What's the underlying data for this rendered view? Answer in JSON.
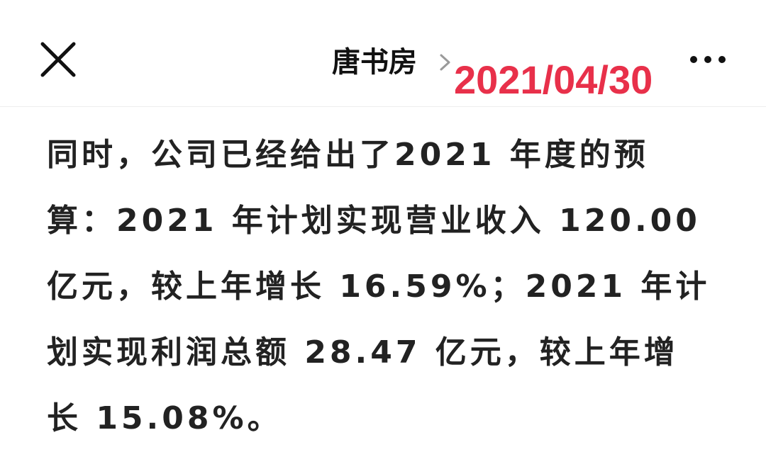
{
  "header": {
    "close_icon": "close-icon",
    "account_name": "唐书房",
    "chevron_icon": "chevron-right-icon",
    "more_icon": "more-dots-icon"
  },
  "stamp": {
    "date": "2021/04/30",
    "color": "#e8304a"
  },
  "article": {
    "lines": [
      "同时，公司已经给出了2021 年度的预",
      "算：2021 年计划实现营业收入 120.00",
      "亿元，较上年增长 16.59%；2021 年计",
      "划实现利润总额 28.47 亿元，较上年增",
      "长 15.08%。"
    ]
  }
}
